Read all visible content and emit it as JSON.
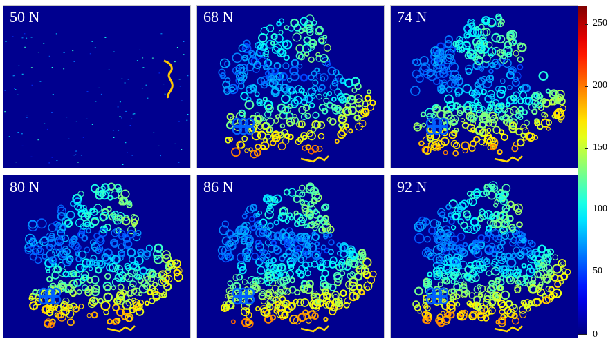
{
  "panels": [
    {
      "label": "50 N",
      "stage": 0
    },
    {
      "label": "68 N",
      "stage": 1
    },
    {
      "label": "74 N",
      "stage": 2
    },
    {
      "label": "80 N",
      "stage": 3
    },
    {
      "label": "86 N",
      "stage": 4
    },
    {
      "label": "92 N",
      "stage": 5
    }
  ],
  "colorbar": {
    "colormap": "jet",
    "min": 0,
    "max": 265,
    "ticks": [
      "250",
      "200",
      "150",
      "100",
      "50",
      "0"
    ]
  }
}
